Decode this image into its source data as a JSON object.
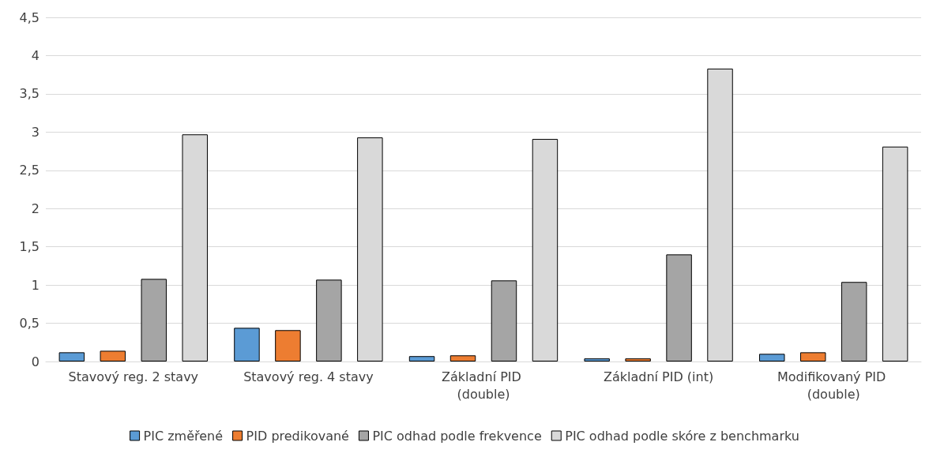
{
  "chart_data": {
    "type": "bar",
    "categories": [
      "Stavový reg. 2 stavy",
      "Stavový reg. 4 stavy",
      "Základní PID (double)",
      "Základní PID (int)",
      "Modifikovaný PID (double)"
    ],
    "series": [
      {
        "name": "PIC změřené",
        "color": "#5b9bd5",
        "values": [
          0.12,
          0.44,
          0.07,
          0.04,
          0.1
        ]
      },
      {
        "name": "PID predikované",
        "color": "#ed7d31",
        "values": [
          0.14,
          0.41,
          0.08,
          0.04,
          0.12
        ]
      },
      {
        "name": "PIC odhad podle frekvence",
        "color": "#a5a5a5",
        "values": [
          1.08,
          1.07,
          1.06,
          1.4,
          1.04
        ]
      },
      {
        "name": "PIC odhad podle skóre z benchmarku",
        "color": "#d9d9d9",
        "values": [
          2.97,
          2.93,
          2.91,
          3.83,
          2.81
        ]
      }
    ],
    "ylim": [
      0,
      4.5
    ],
    "yticks": [
      0,
      {
        "value": 0.5,
        "label": "0,5"
      },
      1,
      {
        "value": 1.5,
        "label": "1,5"
      },
      2,
      {
        "value": 2.5,
        "label": "2,5"
      },
      3,
      {
        "value": 3.5,
        "label": "3,5"
      },
      4,
      {
        "value": 4.5,
        "label": "4,5"
      }
    ],
    "grid": "y",
    "legend": "bottom"
  }
}
